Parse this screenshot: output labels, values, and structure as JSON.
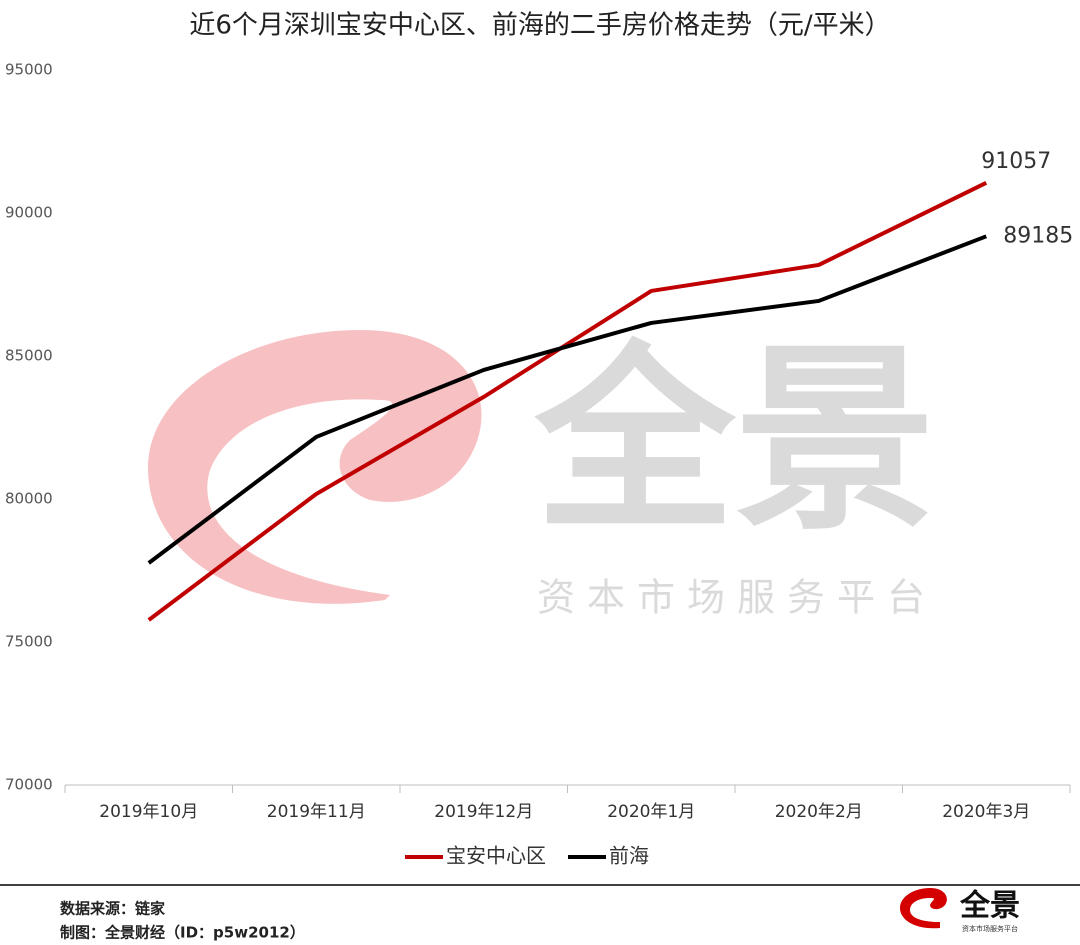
{
  "chart_data": {
    "type": "line",
    "title": "近6个月深圳宝安中心区、前海的二手房价格走势（元/平米）",
    "categories": [
      "2019年10月",
      "2019年11月",
      "2019年12月",
      "2020年1月",
      "2020年2月",
      "2020年3月"
    ],
    "series": [
      {
        "name": "宝安中心区",
        "color": "#c00000",
        "values": [
          75770,
          80176,
          83570,
          87275,
          88184,
          91057
        ]
      },
      {
        "name": "前海",
        "color": "#000000",
        "values": [
          77763,
          82170,
          84513,
          86156,
          86925,
          89185
        ]
      }
    ],
    "ylim": [
      70000,
      95000
    ],
    "yticks": [
      70000,
      75000,
      80000,
      85000,
      90000,
      95000
    ],
    "grid": false,
    "legend": "bottom"
  },
  "watermark": {
    "title": "全景",
    "subtitle": "资本市场服务平台"
  },
  "footer": {
    "source": "数据来源：链家",
    "credit": "制图：全景财经（ID：p5w2012）",
    "logo": "全景",
    "logo_sub": "资本市场服务平台"
  }
}
